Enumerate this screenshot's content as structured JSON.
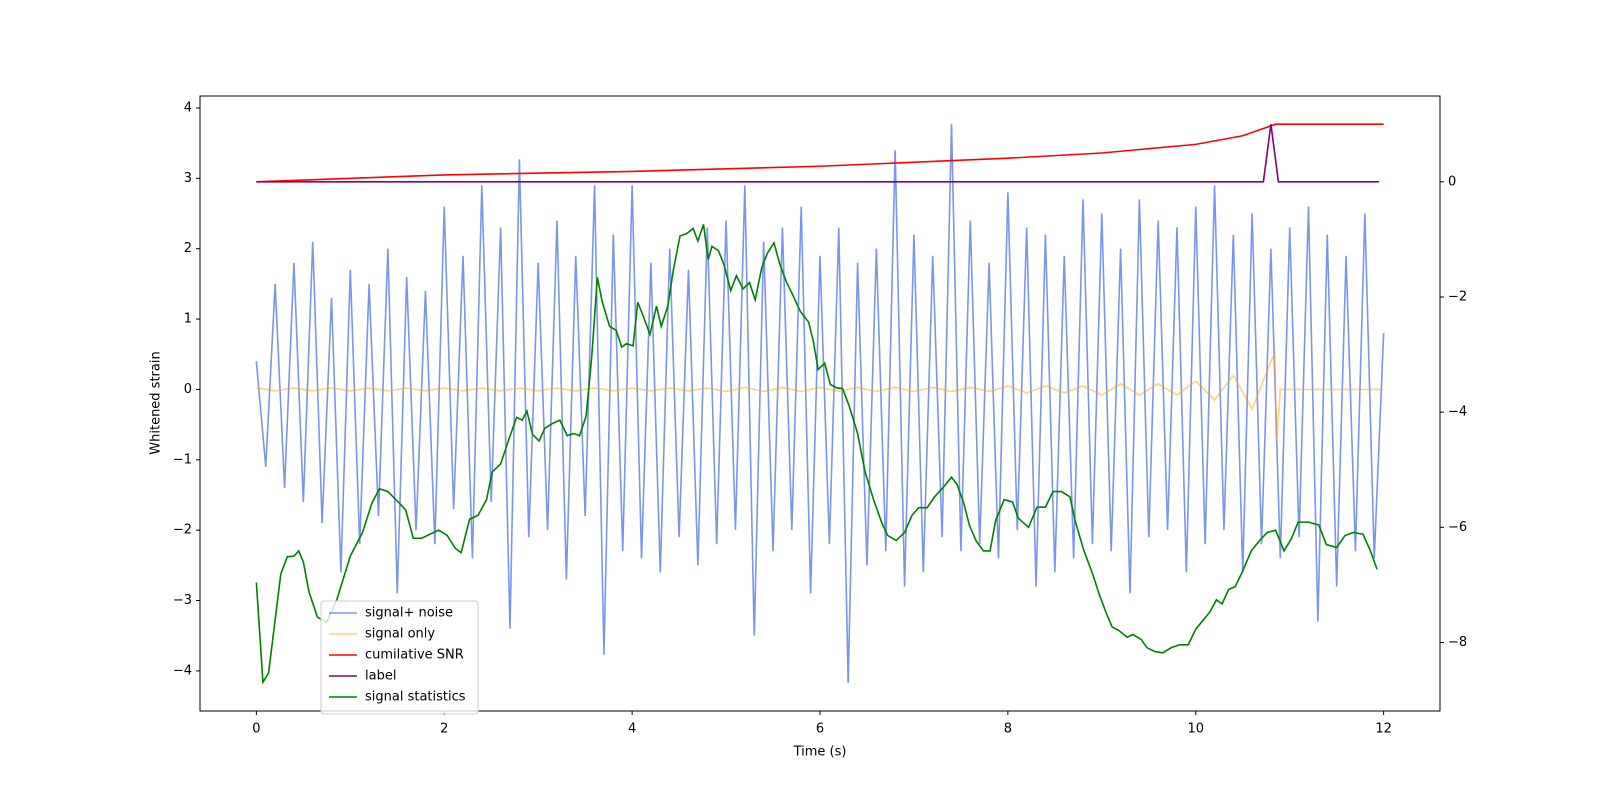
{
  "chart_data": {
    "type": "line",
    "xlabel": "Time (s)",
    "ylabel": "Whitened strain",
    "xlim": [
      -0.6,
      12.6
    ],
    "ylim": [
      -4.57,
      4.17
    ],
    "y2lim": [
      -9.19,
      1.49
    ],
    "xticks": [
      0,
      2,
      4,
      6,
      8,
      10,
      12
    ],
    "yticks": [
      {
        "value": -4,
        "label": "−4"
      },
      {
        "value": -3,
        "label": "−3"
      },
      {
        "value": -2,
        "label": "−2"
      },
      {
        "value": -1,
        "label": "−1"
      },
      0,
      1,
      2,
      3,
      4
    ],
    "y2ticks": [
      {
        "value": -8,
        "label": "−8"
      },
      {
        "value": -6,
        "label": "−6"
      },
      {
        "value": -4,
        "label": "−4"
      },
      {
        "value": -2,
        "label": "−2"
      },
      0
    ],
    "legend": "lower left",
    "series": [
      {
        "name": "signal+ noise",
        "color": "royalblue",
        "alpha": 0.7,
        "axis": "y",
        "x": [
          0,
          0.1,
          0.2,
          0.3,
          0.4,
          0.5,
          0.6,
          0.7,
          0.8,
          0.9,
          1,
          1.1,
          1.2,
          1.3,
          1.4,
          1.5,
          1.6,
          1.7,
          1.8,
          1.9,
          2,
          2.1,
          2.2,
          2.3,
          2.4,
          2.5,
          2.6,
          2.7,
          2.8,
          2.9,
          3,
          3.1,
          3.2,
          3.3,
          3.4,
          3.5,
          3.6,
          3.7,
          3.8,
          3.9,
          4,
          4.1,
          4.2,
          4.3,
          4.4,
          4.5,
          4.6,
          4.7,
          4.8,
          4.9,
          5,
          5.1,
          5.2,
          5.3,
          5.4,
          5.5,
          5.6,
          5.7,
          5.8,
          5.9,
          6,
          6.1,
          6.2,
          6.3,
          6.4,
          6.5,
          6.6,
          6.7,
          6.8,
          6.9,
          7,
          7.1,
          7.2,
          7.3,
          7.4,
          7.5,
          7.6,
          7.7,
          7.8,
          7.9,
          8,
          8.1,
          8.2,
          8.3,
          8.4,
          8.5,
          8.6,
          8.7,
          8.8,
          8.9,
          9,
          9.1,
          9.2,
          9.3,
          9.4,
          9.5,
          9.6,
          9.7,
          9.8,
          9.9,
          10,
          10.1,
          10.2,
          10.3,
          10.4,
          10.5,
          10.6,
          10.7,
          10.8,
          10.9,
          11,
          11.1,
          11.2,
          11.3,
          11.4,
          11.5,
          11.6,
          11.7,
          11.8,
          11.9,
          12
        ],
        "values": [
          0.4,
          -1.1,
          1.5,
          -1.4,
          1.8,
          -1.6,
          2.1,
          -1.9,
          1.3,
          -2.6,
          1.7,
          -2.2,
          1.5,
          -1.8,
          2.0,
          -2.9,
          1.6,
          -2.0,
          1.4,
          -2.2,
          2.6,
          -1.7,
          1.9,
          -2.4,
          2.9,
          -1.6,
          2.3,
          -3.4,
          3.27,
          -2.1,
          1.8,
          -2.0,
          2.4,
          -2.7,
          1.9,
          -1.8,
          2.9,
          -3.77,
          2.2,
          -2.3,
          2.9,
          -2.4,
          1.8,
          -2.6,
          2.0,
          -2.1,
          1.7,
          -2.5,
          2.3,
          -2.2,
          2.4,
          -2.0,
          2.9,
          -3.5,
          2.1,
          -2.3,
          2.3,
          -2.0,
          2.6,
          -2.9,
          1.9,
          -2.2,
          2.3,
          -4.17,
          1.8,
          -2.5,
          2.0,
          -2.3,
          3.4,
          -2.8,
          2.2,
          -2.6,
          1.9,
          -2.1,
          3.77,
          -2.3,
          2.4,
          -2.2,
          1.8,
          -2.4,
          2.8,
          -2.0,
          2.3,
          -2.8,
          2.2,
          -2.6,
          1.9,
          -2.4,
          2.7,
          -2.2,
          2.5,
          -2.3,
          2.0,
          -2.9,
          2.7,
          -2.1,
          2.4,
          -2.0,
          2.3,
          -2.6,
          2.6,
          -2.2,
          2.9,
          -2.0,
          2.2,
          -2.6,
          2.5,
          -2.2,
          2.0,
          -2.4,
          2.3,
          -2.1,
          2.6,
          -3.3,
          2.2,
          -2.8,
          1.9,
          -2.3,
          2.5,
          -2.4,
          0.8
        ]
      },
      {
        "name": "signal only",
        "color": "orange",
        "alpha": 0.5,
        "axis": "y",
        "x": [
          0,
          0.2,
          0.4,
          0.6,
          0.8,
          1,
          1.2,
          1.4,
          1.6,
          1.8,
          2,
          2.2,
          2.4,
          2.6,
          2.8,
          3,
          3.2,
          3.4,
          3.6,
          3.8,
          4,
          4.2,
          4.4,
          4.6,
          4.8,
          5,
          5.2,
          5.4,
          5.6,
          5.8,
          6,
          6.2,
          6.4,
          6.6,
          6.8,
          7,
          7.2,
          7.4,
          7.6,
          7.8,
          8,
          8.2,
          8.4,
          8.6,
          8.8,
          9,
          9.2,
          9.4,
          9.6,
          9.8,
          10,
          10.2,
          10.4,
          10.6,
          10.8,
          10.84,
          10.86,
          10.9,
          12
        ],
        "values": [
          0.02,
          -0.02,
          0.02,
          -0.02,
          0.02,
          -0.02,
          0.02,
          -0.02,
          0.02,
          -0.02,
          0.02,
          -0.02,
          0.02,
          -0.02,
          0.02,
          -0.02,
          0.02,
          -0.02,
          0.02,
          -0.02,
          0.02,
          -0.02,
          0.02,
          -0.02,
          0.02,
          -0.03,
          0.03,
          -0.03,
          0.03,
          -0.03,
          0.03,
          -0.03,
          0.03,
          -0.03,
          0.03,
          -0.03,
          0.03,
          -0.03,
          0.03,
          -0.03,
          0.05,
          -0.05,
          0.05,
          -0.05,
          0.05,
          -0.08,
          0.08,
          -0.08,
          0.08,
          -0.08,
          0.12,
          -0.15,
          0.2,
          -0.28,
          0.4,
          0.5,
          -0.75,
          0,
          0
        ]
      },
      {
        "name": "cumilative SNR",
        "color": "red",
        "alpha": 1,
        "axis": "y2",
        "x": [
          0,
          2,
          4,
          6,
          8,
          9,
          10,
          10.5,
          10.85,
          12
        ],
        "values": [
          0,
          0.12,
          0.18,
          0.27,
          0.41,
          0.5,
          0.65,
          0.8,
          1.0,
          1.0
        ]
      },
      {
        "name": "label",
        "color": "purple",
        "alpha": 1,
        "axis": "y2",
        "x": [
          0,
          10.72,
          10.8,
          10.88,
          11.95
        ],
        "values": [
          0,
          0,
          1,
          0,
          0
        ]
      },
      {
        "name": "signal statistics",
        "color": "green",
        "alpha": 1,
        "axis": "y2",
        "x": [
          0,
          0.07,
          0.13,
          0.26,
          0.33,
          0.4,
          0.45,
          0.5,
          0.56,
          0.65,
          0.75,
          0.86,
          1.0,
          1.13,
          1.23,
          1.31,
          1.4,
          1.51,
          1.59,
          1.67,
          1.76,
          1.86,
          1.94,
          2.03,
          2.12,
          2.18,
          2.27,
          2.36,
          2.45,
          2.51,
          2.6,
          2.68,
          2.77,
          2.83,
          2.88,
          2.94,
          3.01,
          3.07,
          3.16,
          3.23,
          3.31,
          3.38,
          3.44,
          3.51,
          3.57,
          3.63,
          3.68,
          3.76,
          3.83,
          3.89,
          3.94,
          4.01,
          4.06,
          4.12,
          4.19,
          4.26,
          4.31,
          4.38,
          4.44,
          4.51,
          4.58,
          4.65,
          4.7,
          4.76,
          4.81,
          4.85,
          4.92,
          4.98,
          5.05,
          5.11,
          5.18,
          5.25,
          5.31,
          5.38,
          5.44,
          5.51,
          5.57,
          5.64,
          5.7,
          5.79,
          5.88,
          5.93,
          5.98,
          6.05,
          6.11,
          6.18,
          6.24,
          6.31,
          6.4,
          6.48,
          6.57,
          6.66,
          6.72,
          6.81,
          6.9,
          6.98,
          7.05,
          7.14,
          7.22,
          7.31,
          7.4,
          7.46,
          7.53,
          7.59,
          7.66,
          7.74,
          7.81,
          7.87,
          7.96,
          8.05,
          8.11,
          8.22,
          8.31,
          8.4,
          8.48,
          8.57,
          8.66,
          8.72,
          8.81,
          8.9,
          8.98,
          9.05,
          9.11,
          9.18,
          9.27,
          9.33,
          9.42,
          9.48,
          9.57,
          9.65,
          9.74,
          9.83,
          9.92,
          10.0,
          10.09,
          10.15,
          10.22,
          10.28,
          10.35,
          10.42,
          10.5,
          10.59,
          10.68,
          10.76,
          10.85,
          10.94,
          11.02,
          11.09,
          11.2,
          11.31,
          11.39,
          11.5,
          11.59,
          11.68,
          11.78,
          11.86,
          11.93
        ],
        "values": [
          -6.96,
          -8.69,
          -8.53,
          -6.81,
          -6.51,
          -6.5,
          -6.41,
          -6.6,
          -7.12,
          -7.56,
          -7.65,
          -7.24,
          -6.5,
          -6.09,
          -5.58,
          -5.33,
          -5.38,
          -5.56,
          -5.7,
          -6.19,
          -6.19,
          -6.11,
          -6.05,
          -6.14,
          -6.37,
          -6.44,
          -5.86,
          -5.79,
          -5.52,
          -5.04,
          -4.9,
          -4.51,
          -4.09,
          -4.14,
          -3.98,
          -4.39,
          -4.5,
          -4.28,
          -4.19,
          -4.14,
          -4.41,
          -4.37,
          -4.41,
          -4.07,
          -3.04,
          -1.66,
          -2.07,
          -2.51,
          -2.58,
          -2.87,
          -2.81,
          -2.85,
          -2.09,
          -2.34,
          -2.65,
          -2.16,
          -2.51,
          -2.16,
          -1.52,
          -0.94,
          -0.9,
          -0.81,
          -1.03,
          -0.74,
          -1.35,
          -1.12,
          -1.2,
          -1.45,
          -1.89,
          -1.63,
          -1.86,
          -1.75,
          -2.05,
          -1.49,
          -1.24,
          -1.06,
          -1.42,
          -1.73,
          -1.93,
          -2.25,
          -2.44,
          -2.78,
          -3.26,
          -3.15,
          -3.52,
          -3.58,
          -3.59,
          -3.89,
          -4.37,
          -5.04,
          -5.52,
          -5.93,
          -6.14,
          -6.23,
          -6.09,
          -5.79,
          -5.66,
          -5.66,
          -5.47,
          -5.31,
          -5.13,
          -5.26,
          -5.58,
          -5.96,
          -6.23,
          -6.41,
          -6.41,
          -5.88,
          -5.52,
          -5.56,
          -5.84,
          -6.0,
          -5.65,
          -5.65,
          -5.38,
          -5.38,
          -5.47,
          -5.91,
          -6.41,
          -6.8,
          -7.2,
          -7.5,
          -7.73,
          -7.79,
          -7.91,
          -7.86,
          -7.95,
          -8.09,
          -8.16,
          -8.18,
          -8.09,
          -8.04,
          -8.04,
          -7.77,
          -7.59,
          -7.47,
          -7.26,
          -7.33,
          -7.08,
          -7.03,
          -6.76,
          -6.41,
          -6.23,
          -6.09,
          -6.05,
          -6.41,
          -6.19,
          -5.91,
          -5.91,
          -5.96,
          -6.3,
          -6.35,
          -6.14,
          -6.09,
          -6.12,
          -6.41,
          -6.73
        ]
      }
    ]
  }
}
